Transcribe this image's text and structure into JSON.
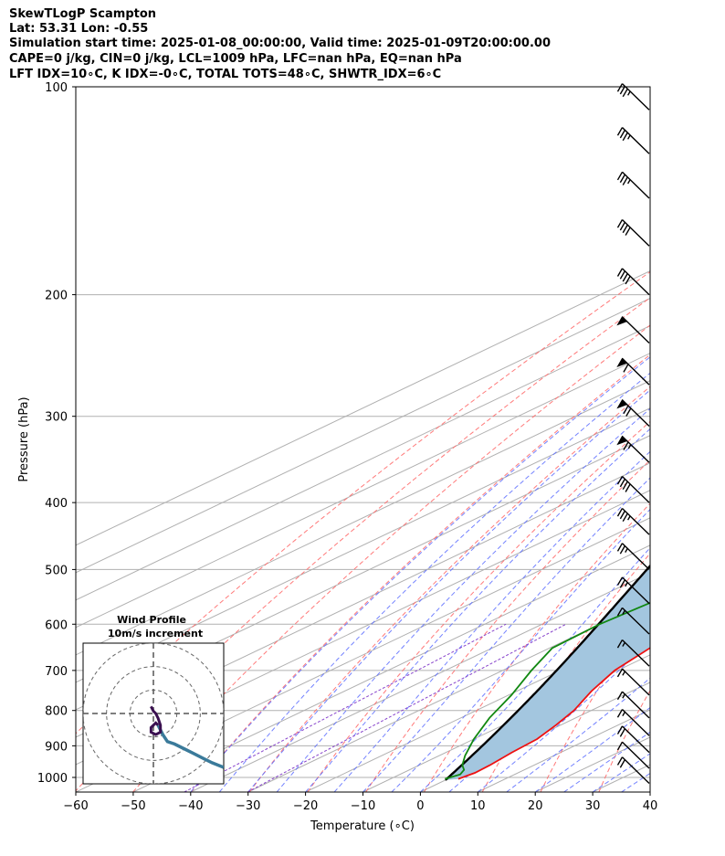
{
  "header": {
    "line1": "SkewTLogP Scampton",
    "line2": "Lat: 53.31   Lon: -0.55",
    "line3": "Simulation start time: 2025-01-08_00:00:00, Valid time: 2025-01-09T20:00:00.00",
    "line4": "CAPE=0 j/kg, CIN=0 j/kg, LCL=1009 hPa, LFC=nan hPa, EQ=nan hPa",
    "line5": "LFT IDX=10∘C, K IDX=-0∘C, TOTAL TOTS=48∘C, SHWTR_IDX=6∘C"
  },
  "chart_data": {
    "type": "line",
    "subtype": "skew-t log-p",
    "xlabel": "Temperature (∘C)",
    "ylabel": "Pressure (hPa)",
    "xlim": [
      -60,
      40
    ],
    "ylim": [
      1050,
      100
    ],
    "x_ticks": [
      "−60",
      "−50",
      "−40",
      "−30",
      "−20",
      "−10",
      "0",
      "10",
      "20",
      "30",
      "40"
    ],
    "y_ticks": [
      "100",
      "200",
      "300",
      "400",
      "500",
      "600",
      "700",
      "800",
      "900",
      "1000"
    ],
    "y_tick_values": [
      100,
      200,
      300,
      400,
      500,
      600,
      700,
      800,
      900,
      1000
    ],
    "grid": true,
    "colors": {
      "temperature": "#ee1111",
      "dewpoint": "#118811",
      "parcel": "#000000",
      "shade": "#a3c6df",
      "dry_adiabat": "#ff6b6b",
      "moist_adiabat": "#5a6cff",
      "mixing_ratio": "#8844cc",
      "isotherm": "#b0b0b0",
      "hodograph": "#3a7a9a",
      "hodograph_start": "#3a1050"
    },
    "series": [
      {
        "key": "temperature",
        "points": [
          [
            1.8,
            1005
          ],
          [
            2.5,
            985
          ],
          [
            2.3,
            960
          ],
          [
            1.5,
            920
          ],
          [
            1.0,
            880
          ],
          [
            -0.8,
            840
          ],
          [
            -3.0,
            800
          ],
          [
            -7.0,
            750
          ],
          [
            -10.5,
            700
          ],
          [
            -12.5,
            650
          ],
          [
            -13.5,
            600
          ],
          [
            -12.5,
            550
          ],
          [
            -12.5,
            530
          ],
          [
            -10.0,
            500
          ],
          [
            -7.5,
            460
          ],
          [
            -6.0,
            440
          ],
          [
            -6.0,
            420
          ],
          [
            -5.5,
            400
          ],
          [
            -5.5,
            380
          ],
          [
            -6.5,
            360
          ],
          [
            -8.5,
            330
          ],
          [
            -10.0,
            310
          ],
          [
            -11.5,
            280
          ],
          [
            -11.5,
            255
          ],
          [
            -10.5,
            230
          ],
          [
            -8.0,
            205
          ],
          [
            -6.0,
            190
          ],
          [
            -2.0,
            170
          ],
          [
            0.5,
            150
          ],
          [
            2.0,
            135
          ],
          [
            3.5,
            120
          ],
          [
            4.5,
            110
          ],
          [
            5.5,
            100
          ]
        ]
      },
      {
        "key": "dewpoint",
        "points": [
          [
            -0.5,
            1005
          ],
          [
            0.5,
            990
          ],
          [
            -0.5,
            975
          ],
          [
            -2.5,
            960
          ],
          [
            -5.5,
            930
          ],
          [
            -10.0,
            880
          ],
          [
            -15.0,
            820
          ],
          [
            -19.5,
            760
          ],
          [
            -25.0,
            700
          ],
          [
            -29.5,
            650
          ],
          [
            -30.0,
            600
          ],
          [
            -29.0,
            560
          ],
          [
            -28.0,
            530
          ],
          [
            -32.0,
            490
          ],
          [
            -38.0,
            440
          ],
          [
            -39.5,
            420
          ],
          [
            -35.5,
            390
          ],
          [
            -31.0,
            370
          ],
          [
            -25.0,
            350
          ],
          [
            -24.5,
            330
          ],
          [
            -25.5,
            310
          ],
          [
            -28.0,
            290
          ],
          [
            -30.5,
            270
          ],
          [
            -29.0,
            250
          ],
          [
            -26.0,
            230
          ],
          [
            -23.5,
            210
          ],
          [
            -22.0,
            190
          ],
          [
            -21.5,
            175
          ],
          [
            -20.0,
            165
          ],
          [
            -17.0,
            150
          ],
          [
            -14.5,
            135
          ],
          [
            -11.5,
            120
          ],
          [
            -9.0,
            110
          ],
          [
            -7.0,
            100
          ]
        ]
      },
      {
        "key": "parcel",
        "start_temperature": 0.0,
        "start_pressure": 1009
      }
    ],
    "wind_barbs": [
      {
        "p": 1020,
        "kt": 20
      },
      {
        "p": 970,
        "kt": 10
      },
      {
        "p": 920,
        "kt": 20
      },
      {
        "p": 870,
        "kt": 15
      },
      {
        "p": 820,
        "kt": 15
      },
      {
        "p": 760,
        "kt": 15
      },
      {
        "p": 690,
        "kt": 15
      },
      {
        "p": 620,
        "kt": 15
      },
      {
        "p": 560,
        "kt": 25
      },
      {
        "p": 500,
        "kt": 25
      },
      {
        "p": 445,
        "kt": 35
      },
      {
        "p": 400,
        "kt": 40
      },
      {
        "p": 350,
        "kt": 65
      },
      {
        "p": 310,
        "kt": 70
      },
      {
        "p": 270,
        "kt": 60
      },
      {
        "p": 235,
        "kt": 50
      },
      {
        "p": 200,
        "kt": 40
      },
      {
        "p": 170,
        "kt": 40
      },
      {
        "p": 145,
        "kt": 35
      },
      {
        "p": 125,
        "kt": 35
      },
      {
        "p": 108,
        "kt": 35
      }
    ],
    "inset": {
      "title": "Wind Profile",
      "subtitle": "10m/s increment",
      "rings_ms": [
        10,
        20,
        30
      ],
      "range_ms": 30,
      "hodograph": [
        [
          2,
          -5
        ],
        [
          4,
          -9
        ],
        [
          6,
          -12
        ],
        [
          9,
          -13
        ],
        [
          13,
          -15
        ],
        [
          17,
          -17
        ],
        [
          21,
          -19
        ],
        [
          25,
          -21
        ],
        [
          30,
          -23
        ]
      ],
      "loop": [
        [
          2,
          -5
        ],
        [
          1,
          -4
        ],
        [
          -1,
          -6
        ],
        [
          -1,
          -8
        ],
        [
          1,
          -9
        ],
        [
          3,
          -8
        ],
        [
          3,
          -5
        ],
        [
          2,
          -2
        ],
        [
          1,
          0
        ],
        [
          0,
          1
        ],
        [
          -1,
          3
        ]
      ]
    }
  }
}
